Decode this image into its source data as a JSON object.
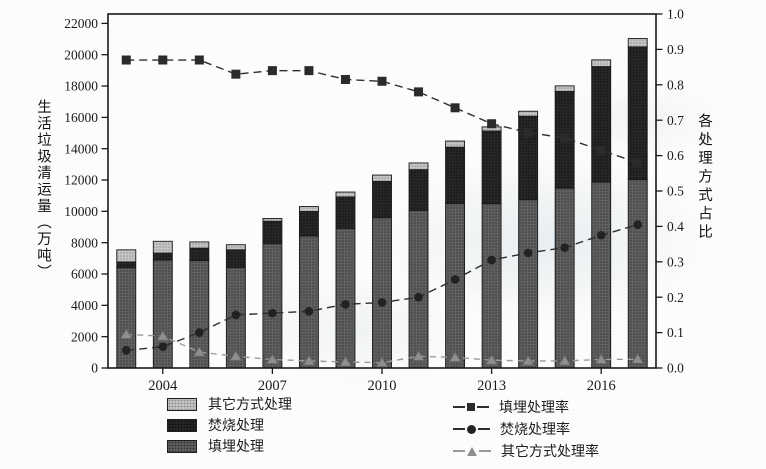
{
  "chart_data": {
    "type": "bar",
    "note": "stacked bars on left axis with three dashed marker lines on right axis",
    "years": [
      2003,
      2004,
      2005,
      2006,
      2007,
      2008,
      2009,
      2010,
      2011,
      2012,
      2013,
      2014,
      2015,
      2016,
      2017
    ],
    "x_tick_labels": [
      "2004",
      "2007",
      "2010",
      "2013",
      "2016"
    ],
    "x_tick_year_indices": [
      1,
      4,
      7,
      10,
      13
    ],
    "left_axis": {
      "label": "生活垃圾清运量（万吨）",
      "min": 0,
      "max": 22000,
      "step": 2000
    },
    "right_axis": {
      "label": "各处理方式占比",
      "min": 0.0,
      "max": 1.0,
      "step": 0.1
    },
    "bar_series": [
      {
        "name": "填埋处理",
        "color": "#606060",
        "texture_dot": "#3a3a3a",
        "values": [
          6404,
          6889,
          6858,
          6408,
          7933,
          8424,
          8899,
          9598,
          10064,
          10513,
          10493,
          10744,
          11483,
          11866,
          12038
        ]
      },
      {
        "name": "焚烧处理",
        "color": "#272727",
        "texture_dot": "#101010",
        "values": [
          370,
          449,
          791,
          1138,
          1435,
          1570,
          2022,
          2317,
          2599,
          3584,
          4634,
          5330,
          6176,
          7378,
          8463
        ]
      },
      {
        "name": "其它方式处理",
        "color": "#c5c5c5",
        "texture_dot": "#939393",
        "values": [
          771,
          751,
          402,
          326,
          180,
          313,
          312,
          403,
          427,
          394,
          267,
          320,
          354,
          429,
          533
        ]
      }
    ],
    "line_series": [
      {
        "name": "填埋处理率",
        "marker": "square",
        "color": "#2e2e2e",
        "marker_color": "#2b2b2b",
        "values": [
          0.87,
          0.87,
          0.87,
          0.83,
          0.84,
          0.84,
          0.815,
          0.81,
          0.78,
          0.735,
          0.69,
          0.665,
          0.65,
          0.615,
          0.58
        ]
      },
      {
        "name": "焚烧处理率",
        "marker": "circle",
        "color": "#2e2e2e",
        "marker_color": "#222222",
        "values": [
          0.05,
          0.06,
          0.1,
          0.15,
          0.155,
          0.16,
          0.18,
          0.185,
          0.2,
          0.25,
          0.305,
          0.325,
          0.34,
          0.375,
          0.405
        ]
      },
      {
        "name": "其它方式处理率",
        "marker": "triangle",
        "color": "#9b9b9b",
        "marker_color": "#8f8f8f",
        "values": [
          0.095,
          0.09,
          0.045,
          0.033,
          0.024,
          0.02,
          0.017,
          0.015,
          0.033,
          0.03,
          0.022,
          0.02,
          0.02,
          0.024,
          0.025
        ]
      }
    ],
    "legend_bars": [
      {
        "label": "其它方式处理",
        "fill": "#c5c5c5",
        "dot": "#939393"
      },
      {
        "label": "焚烧处理",
        "fill": "#272727",
        "dot": "#101010"
      },
      {
        "label": "填埋处理",
        "fill": "#606060",
        "dot": "#3a3a3a"
      }
    ],
    "legend_lines": [
      {
        "label": "填埋处理率",
        "marker": "square",
        "color": "#2e2e2e",
        "marker_color": "#2b2b2b"
      },
      {
        "label": "焚烧处理率",
        "marker": "circle",
        "color": "#2e2e2e",
        "marker_color": "#222222"
      },
      {
        "label": "其它方式处理率",
        "marker": "triangle",
        "color": "#9b9b9b",
        "marker_color": "#8f8f8f"
      }
    ]
  }
}
